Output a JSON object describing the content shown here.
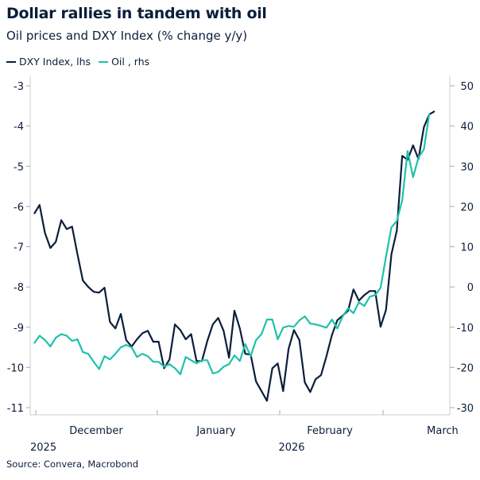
{
  "chart_data": {
    "type": "line",
    "title": "Dollar rallies in tandem with oil",
    "subtitle": "Oil prices and DXY Index (% change y/y)",
    "legend_position": "top-left",
    "grid": false,
    "x_tick_labels": [
      "December",
      "January",
      "February",
      "March"
    ],
    "x_year_labels": [
      "2025",
      "2026"
    ],
    "y_left": {
      "ticks": [
        -3,
        -4,
        -5,
        -6,
        -7,
        -8,
        -9,
        -10,
        -11
      ],
      "range": [
        -11,
        -3
      ]
    },
    "y_right": {
      "ticks": [
        50,
        40,
        30,
        20,
        10,
        0,
        -10,
        -20,
        -30
      ],
      "range": [
        -30,
        50
      ]
    },
    "series": [
      {
        "name": "DXY Index, lhs",
        "axis": "left",
        "color": "#0b1e3a",
        "values": [
          -6.18,
          -5.96,
          -6.66,
          -7.03,
          -6.88,
          -6.34,
          -6.56,
          -6.5,
          -7.19,
          -7.84,
          -8.0,
          -8.12,
          -8.14,
          -8.02,
          -8.87,
          -9.03,
          -8.67,
          -9.32,
          -9.48,
          -9.3,
          -9.15,
          -9.09,
          -9.36,
          -9.36,
          -10.02,
          -9.8,
          -8.93,
          -9.07,
          -9.3,
          -9.17,
          -9.84,
          -9.84,
          -9.34,
          -8.93,
          -8.77,
          -9.09,
          -9.76,
          -8.59,
          -9.03,
          -9.66,
          -9.68,
          -10.35,
          -10.59,
          -10.83,
          -10.02,
          -9.9,
          -10.59,
          -9.54,
          -9.07,
          -9.32,
          -10.37,
          -10.61,
          -10.29,
          -10.19,
          -9.72,
          -9.2,
          -8.83,
          -8.71,
          -8.59,
          -8.06,
          -8.34,
          -8.2,
          -8.1,
          -8.1,
          -8.99,
          -8.57,
          -7.19,
          -6.6,
          -4.74,
          -4.84,
          -4.48,
          -4.82,
          -4.03,
          -3.71,
          -3.63
        ]
      },
      {
        "name": "Oil , rhs",
        "axis": "right",
        "color": "#1ec2aa",
        "values": [
          -14.0,
          -12.1,
          -13.2,
          -14.8,
          -12.6,
          -11.7,
          -12.1,
          -13.4,
          -13.0,
          -16.2,
          -16.6,
          -18.6,
          -20.4,
          -17.2,
          -18.0,
          -16.6,
          -15.0,
          -14.4,
          -15.0,
          -17.4,
          -16.6,
          -17.2,
          -18.6,
          -18.6,
          -19.8,
          -19.2,
          -20.2,
          -21.7,
          -17.4,
          -18.2,
          -19.0,
          -18.2,
          -18.2,
          -21.5,
          -21.1,
          -19.8,
          -19.2,
          -17.0,
          -18.4,
          -14.2,
          -17.2,
          -13.2,
          -11.7,
          -8.1,
          -8.1,
          -13.0,
          -10.1,
          -9.7,
          -9.9,
          -8.3,
          -7.3,
          -9.1,
          -9.3,
          -9.7,
          -10.1,
          -8.1,
          -10.3,
          -7.3,
          -5.3,
          -6.5,
          -3.8,
          -4.7,
          -2.4,
          -2.0,
          -0.2,
          7.5,
          14.8,
          16.4,
          21.5,
          33.8,
          27.3,
          32.2,
          34.2,
          43.1
        ]
      }
    ]
  },
  "source": "Source: Convera, Macrobond"
}
